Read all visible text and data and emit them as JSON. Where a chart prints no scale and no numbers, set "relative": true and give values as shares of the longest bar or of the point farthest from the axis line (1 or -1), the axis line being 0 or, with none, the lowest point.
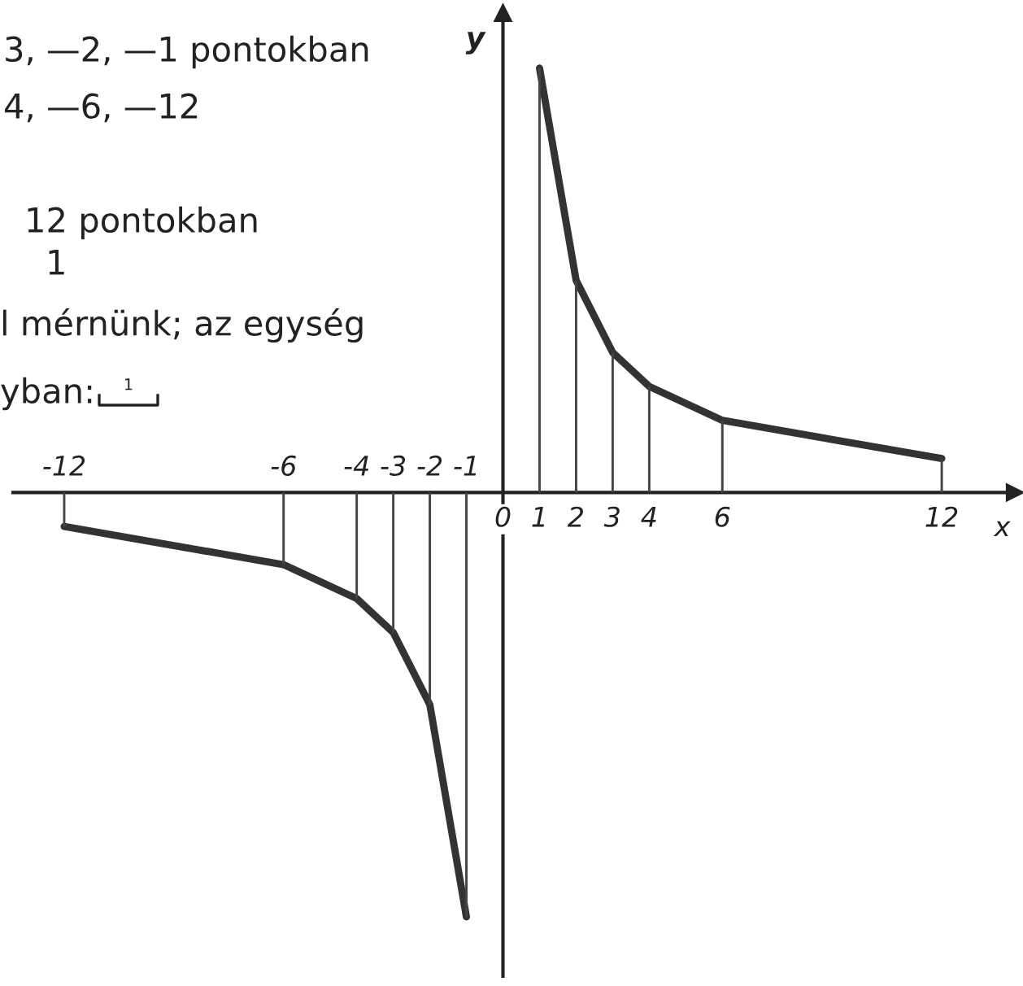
{
  "chart_data": {
    "type": "line",
    "relative": true,
    "xlabel": "x",
    "ylabel": "y",
    "xlim": [
      -13.4,
      14
    ],
    "xticks": [
      0,
      1,
      2,
      3,
      4,
      6,
      12
    ],
    "x2lim": [
      -13.4,
      14
    ],
    "x2ticks": [
      -12,
      -6,
      -4,
      -3,
      -2,
      -1
    ],
    "tick_labels": "x",
    "marker": "none",
    "line_style": "solid",
    "series": [
      {
        "color": "#333333",
        "x": [
          -12,
          -6,
          -4,
          -3,
          -2,
          -1
        ],
        "values": [
          -0.08,
          -0.17,
          -0.25,
          -0.33,
          -0.5,
          -1
        ]
      },
      {
        "color": "#333333",
        "x": [
          1,
          2,
          3,
          4,
          6,
          12
        ],
        "values": [
          1,
          0.5,
          0.33,
          0.25,
          0.17,
          0.08
        ]
      },
      {
        "type": "bar",
        "color": "#444444",
        "x": [
          -12,
          -6,
          -4,
          -3,
          -2,
          -1,
          1,
          2,
          3,
          4,
          6,
          12
        ],
        "values": [
          -0.08,
          -0.17,
          -0.25,
          -0.33,
          -0.5,
          -1,
          1,
          0.5,
          0.33,
          0.25,
          0.17,
          0.08
        ]
      }
    ],
    "annotations": [
      "3, —2, —1 pontokban",
      "4, —6, —12",
      "12 pontokban",
      "1",
      "l mérnünk; az egység",
      "yban:",
      "1"
    ]
  }
}
